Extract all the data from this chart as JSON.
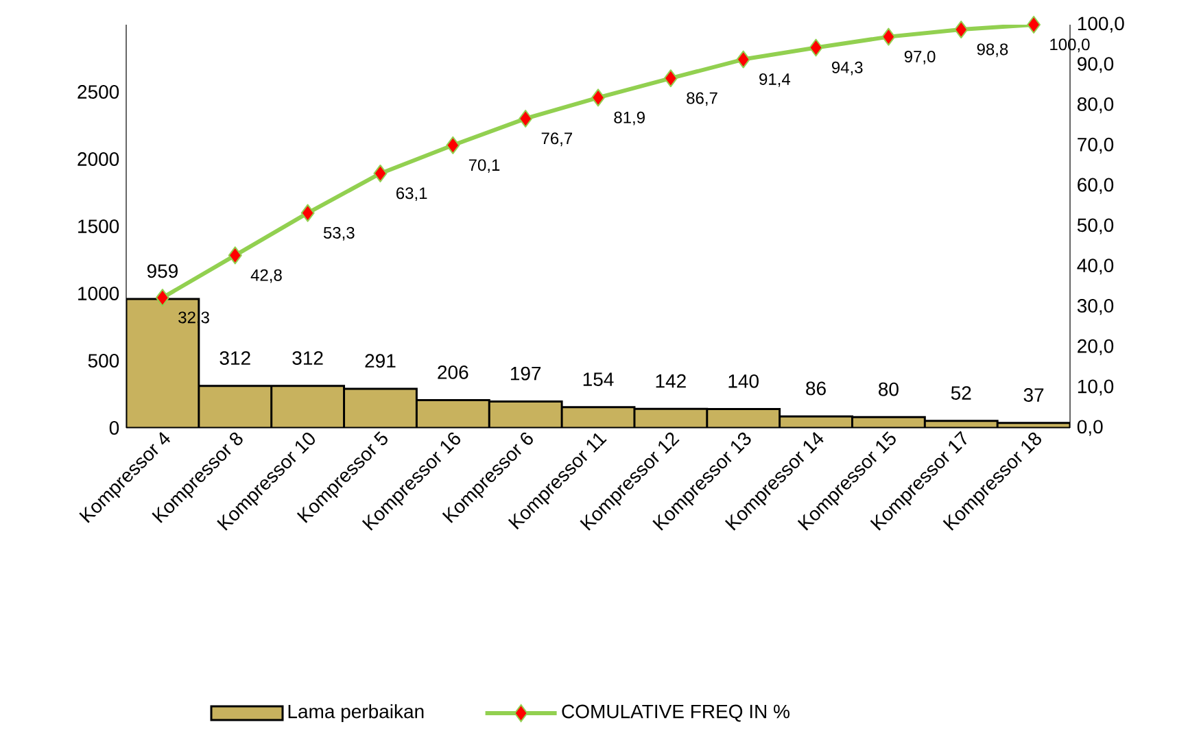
{
  "chart_data": {
    "type": "bar",
    "categories": [
      "Kompressor 4",
      "Kompressor 8",
      "Kompressor 10",
      "Kompressor 5",
      "Kompressor 16",
      "Kompressor 6",
      "Kompressor 11",
      "Kompressor 12",
      "Kompressor 13",
      "Kompressor 14",
      "Kompressor 15",
      "Kompressor 17",
      "Kompressor 18"
    ],
    "series": [
      {
        "name": "Lama perbaikan",
        "color": "#c8b25e",
        "values": [
          959,
          312,
          312,
          291,
          206,
          197,
          154,
          142,
          140,
          86,
          80,
          52,
          37
        ],
        "value_labels": [
          "959",
          "312",
          "312",
          "291",
          "206",
          "197",
          "154",
          "142",
          "140",
          "86",
          "80",
          "52",
          "37"
        ]
      },
      {
        "name": "COMULATIVE FREQ IN %",
        "type": "line",
        "axis": "y2",
        "color": "#92d050",
        "marker": "diamond",
        "values": [
          32.3,
          42.8,
          53.3,
          63.1,
          70.1,
          76.7,
          81.9,
          86.7,
          91.4,
          94.3,
          97.0,
          98.8,
          100.0
        ],
        "value_labels": [
          "32,3",
          "42,8",
          "53,3",
          "63,1",
          "70,1",
          "76,7",
          "81,9",
          "86,7",
          "91,4",
          "94,3",
          "97,0",
          "98,8",
          "100,0"
        ]
      }
    ],
    "ylim": [
      0,
      3000
    ],
    "yticks": [
      0,
      500,
      1000,
      1500,
      2000,
      2500
    ],
    "y2lim": [
      0,
      100
    ],
    "y2ticks": [
      {
        "value": 0,
        "label": "0,0"
      },
      {
        "value": 10,
        "label": "10,0"
      },
      {
        "value": 20,
        "label": "20,0"
      },
      {
        "value": 30,
        "label": "30,0"
      },
      {
        "value": 40,
        "label": "40,0"
      },
      {
        "value": 50,
        "label": "50,0"
      },
      {
        "value": 60,
        "label": "60,0"
      },
      {
        "value": 70,
        "label": "70,0"
      },
      {
        "value": 80,
        "label": "80,0"
      },
      {
        "value": 90,
        "label": "90,0"
      },
      {
        "value": 100,
        "label": "100,0"
      }
    ],
    "legend": "bottom"
  }
}
